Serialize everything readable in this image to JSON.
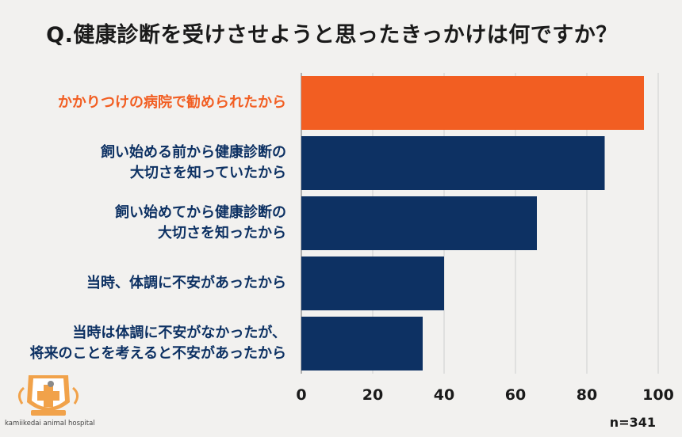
{
  "chart_data": {
    "type": "bar",
    "orientation": "horizontal",
    "title": "Q.健康診断を受けさせようと思ったきっかけは何ですか？",
    "categories": [
      [
        "かかりつけの病院で勧められたから"
      ],
      [
        "飼い始める前から健康診断の",
        "大切さを知っていたから"
      ],
      [
        "飼い始めてから健康診断の",
        "大切さを知ったから"
      ],
      [
        "当時、体調に不安があったから"
      ],
      [
        "当時は体調に不安がなかったが、",
        "将来のことを考えると不安があったから"
      ]
    ],
    "values": [
      96,
      85,
      66,
      40,
      34
    ],
    "highlight_index": 0,
    "xlim": [
      0,
      100
    ],
    "xticks": [
      "0",
      "20",
      "40",
      "60",
      "80",
      "100"
    ],
    "grid": true,
    "colors": {
      "highlight": "#f25e22",
      "default": "#0d3163",
      "highlight_label": "#f25e22",
      "default_label": "#0d3163"
    },
    "sample_note": "n=341"
  },
  "logo": {
    "name": "kamiikedai animal hospital"
  }
}
